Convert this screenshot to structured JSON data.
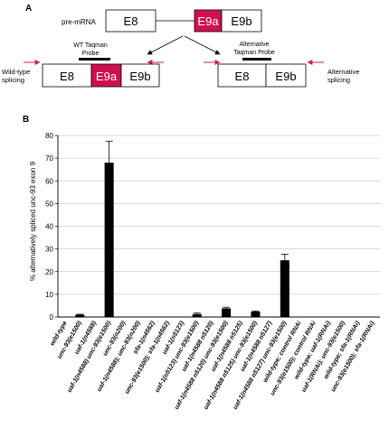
{
  "panel_a": {
    "label": "A",
    "pre_mrna_label": "pre-mRNA",
    "exons": {
      "e8": "E8",
      "e9a": "E9a",
      "e9b": "E9b"
    },
    "wt_probe_label": [
      "WT Taqman",
      "Probe"
    ],
    "alt_probe_label": [
      "Alternative",
      "Taqman Probe"
    ],
    "wt_splicing_label": [
      "Wild-type",
      "splicing"
    ],
    "alt_splicing_label": [
      "Alternative",
      "splicing"
    ],
    "colors": {
      "exon_9a": "#d0104c",
      "primer_arrow": "#d01a63"
    }
  },
  "panel_b": {
    "label": "B",
    "chart_data": {
      "type": "bar",
      "ylabel": "% alternatively spliced unc-93 exon 9",
      "xlabel": "",
      "ylim": [
        0,
        80
      ],
      "yticks": [
        0,
        10,
        20,
        30,
        40,
        50,
        60,
        70,
        80
      ],
      "grid": true,
      "bar_color": "#000000",
      "categories": [
        "wild-type",
        "unc-93(e1500)",
        "uaf-1(n4588)",
        "uaf-1(n4588) unc-93(e1500)",
        "unc-93(n200)",
        "uaf-1(n4588); unc-93(n200)",
        "sfa-1(n4562)",
        "unc-93(e1500); sfa-1(n4562)",
        "uaf-1(n5123)",
        "uaf-1(n5123) unc-93(e1500)",
        "uaf-1(n4588 n5120)",
        "uaf-1(n4588 n5120) unc-93(e1500)",
        "uaf-1(n4588 n5125)",
        "uaf-1(n4588 n5125) unc-93(e1500)",
        "uaf-1(n4588 n5127)",
        "uaf-1(n4588 n5127) unc-93(e1500)",
        "wild-type; control RNAi",
        "unc-93(e1500); control RNAi",
        "wild-type; uaf-1(RNAi)",
        "uaf-1(RNAi); unc-93(e1500)",
        "wild-type; sfa-1(RNAi)",
        "unc-93(e1500); sfa-1(RNAi)"
      ],
      "values": [
        0,
        1,
        0,
        68,
        0,
        0,
        0,
        0,
        0,
        1.3,
        0,
        3.8,
        0,
        2.4,
        0,
        25,
        0,
        0.2,
        0,
        0.2,
        0,
        0.2
      ],
      "errors": [
        0,
        0.2,
        0,
        9.5,
        0,
        0,
        0,
        0,
        0,
        0.5,
        0,
        0.5,
        0,
        0.3,
        0,
        2.7,
        0,
        0,
        0,
        0,
        0,
        0
      ]
    }
  }
}
